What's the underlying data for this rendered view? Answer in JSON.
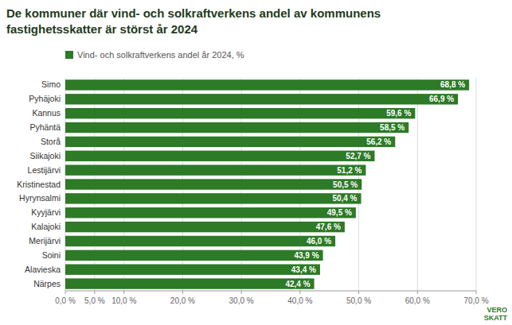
{
  "chart_data": {
    "type": "bar",
    "orientation": "horizontal",
    "title": "De kommuner där vind- och solkraftverkens andel av kommunens\nfastighetsskatter är störst år 2024",
    "categories": [
      "Närpes",
      "Alavieska",
      "Soini",
      "Merijärvi",
      "Kalajoki",
      "Kyyjärvi",
      "Hyrynsalmi",
      "Kristinestad",
      "Lestijärvi",
      "Siikajoki",
      "Storå",
      "Pyhäntä",
      "Kannus",
      "Pyhäjoki",
      "Simo"
    ],
    "series": [
      {
        "name": "Vind- och solkraftverkens andel år 2024, %",
        "color": "#2d7a27",
        "values": [
          42.4,
          43.4,
          43.9,
          46.0,
          47.6,
          49.5,
          50.4,
          50.5,
          51.2,
          52.7,
          56.2,
          58.5,
          59.6,
          66.9,
          68.8
        ],
        "value_labels": [
          "42,4 %",
          "43,4 %",
          "43,9 %",
          "46,0 %",
          "47,6 %",
          "49,5 %",
          "50,4 %",
          "50,5 %",
          "51,2 %",
          "52,7 %",
          "56,2 %",
          "58,5 %",
          "59,6 %",
          "66,9 %",
          "68,8 %"
        ]
      }
    ],
    "xlim": [
      0,
      70
    ],
    "xticks": [
      {
        "value": 0,
        "label": "0,0 %"
      },
      {
        "value": 5,
        "label": "5,0 %"
      },
      {
        "value": 10,
        "label": "10,0 %"
      },
      {
        "value": 20,
        "label": "20,0 %"
      },
      {
        "value": 30,
        "label": "30,0 %"
      },
      {
        "value": 40,
        "label": "40,0 %"
      },
      {
        "value": 50,
        "label": "50,0 %"
      },
      {
        "value": 60,
        "label": "60,0 %"
      },
      {
        "value": 70,
        "label": "70,0 %"
      }
    ],
    "grid": true,
    "legend": "top-left",
    "data_labels": true,
    "annotations": [
      "VERO\nSKATT"
    ]
  }
}
